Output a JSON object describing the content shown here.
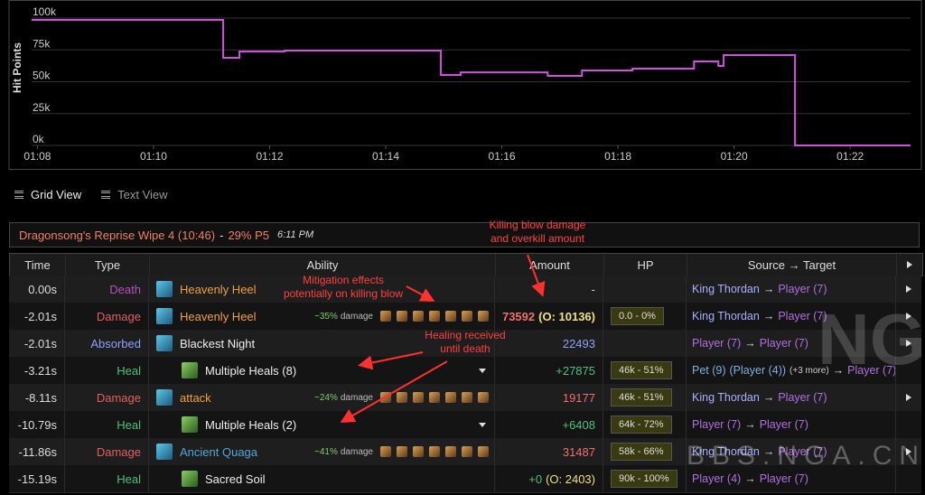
{
  "chart_data": {
    "type": "line",
    "ylabel": "Hit Points",
    "x": [
      67.9,
      71.2,
      71.2,
      71.48,
      71.48,
      72.26,
      72.26,
      74.95,
      74.95,
      75.29,
      75.29,
      76.79,
      76.79,
      77.38,
      77.38,
      78.25,
      78.25,
      79.31,
      79.31,
      79.73,
      79.73,
      79.82,
      79.82,
      81.05,
      81.05,
      83.04
    ],
    "series": [
      {
        "name": "Hit Points",
        "color": "#d050e0",
        "values": [
          98600,
          98600,
          68800,
          68800,
          73800,
          73800,
          74500,
          74500,
          55300,
          55300,
          57400,
          57400,
          54600,
          54600,
          58900,
          58900,
          60300,
          60300,
          66000,
          66000,
          62400,
          62400,
          70900,
          70900,
          0,
          0
        ]
      }
    ],
    "xlim": [
      67.9,
      83.04
    ],
    "ylim": [
      0,
      100000
    ],
    "xticks": [
      {
        "value": 68,
        "label": "01:08"
      },
      {
        "value": 70,
        "label": "01:10"
      },
      {
        "value": 72,
        "label": "01:12"
      },
      {
        "value": 74,
        "label": "01:14"
      },
      {
        "value": 76,
        "label": "01:16"
      },
      {
        "value": 78,
        "label": "01:18"
      },
      {
        "value": 80,
        "label": "01:20"
      },
      {
        "value": 82,
        "label": "01:22"
      }
    ],
    "yticks": [
      {
        "value": 0,
        "label": "0k"
      },
      {
        "value": 25000,
        "label": "25k"
      },
      {
        "value": 50000,
        "label": "50k"
      },
      {
        "value": 75000,
        "label": "75k"
      },
      {
        "value": 100000,
        "label": "100k"
      }
    ],
    "grid": true
  },
  "tabs": [
    "Grid View",
    "Text View"
  ],
  "header": {
    "title": "Dragonsong's Reprise Wipe 4 (10:46)",
    "sep": "-",
    "phase": "29% P5",
    "time": "6:11 PM"
  },
  "annotations": [
    "Killing blow damage\nand overkill amount",
    "Mitigation effects\npotentially on killing blow",
    "Healing received\nuntil death"
  ],
  "watermark": [
    "NGA",
    "BBS.NGA.CN"
  ],
  "arrow": "→",
  "mitigation_suffix": "damage",
  "table": {
    "columns": [
      "Time",
      "Type",
      "Ability",
      "Amount",
      "HP",
      "Source → Target"
    ],
    "rows": [
      {
        "time": "0.00s",
        "type": "Death",
        "type_color": "#b84fc0",
        "ability": "Heavenly Heel",
        "ability_color": "#f0a040",
        "amount": "-",
        "amount_color": "#ccc",
        "source": "King Thordan",
        "source_color": "#aab0ff",
        "target": "Player (7)",
        "target_color": "#b070e0"
      },
      {
        "time": "-2.01s",
        "type": "Damage",
        "type_color": "#e06060",
        "ability": "Heavenly Heel",
        "ability_color": "#f0a040",
        "mitigation": "−35%",
        "amount": "73592",
        "overkill": "(O: 10136)",
        "amount_color": "#f07070",
        "hp": "0.0 - 0%",
        "source": "King Thordan",
        "source_color": "#aab0ff",
        "target": "Player (7)",
        "target_color": "#b070e0"
      },
      {
        "time": "-2.01s",
        "type": "Absorbed",
        "type_color": "#8fa0ff",
        "ability": "Blackest Night",
        "ability_color": "#eeeeee",
        "amount": "22493",
        "amount_color": "#8fa0ff",
        "source": "Player (7)",
        "source_color": "#b070e0",
        "target": "Player (7)",
        "target_color": "#b070e0"
      },
      {
        "time": "-3.21s",
        "type": "Heal",
        "type_color": "#4ec07c",
        "ability": "Multiple Heals (8)",
        "ability_color": "#eeeeee",
        "amount": "+27875",
        "amount_color": "#4ec07c",
        "hp": "46k - 51%",
        "source": "Pet (9)",
        "source_owner": "(Player (4))",
        "source_more": "(+3 more)",
        "source_color": "#7fb0e0",
        "target": "Player (7)",
        "target_color": "#b070e0"
      },
      {
        "time": "-8.11s",
        "type": "Damage",
        "type_color": "#e06060",
        "ability": "attack",
        "ability_color": "#f0a040",
        "mitigation": "−24%",
        "amount": "19177",
        "amount_color": "#f07070",
        "hp": "46k - 51%",
        "source": "King Thordan",
        "source_color": "#aab0ff",
        "target": "Player (7)",
        "target_color": "#b070e0"
      },
      {
        "time": "-10.79s",
        "type": "Heal",
        "type_color": "#4ec07c",
        "ability": "Multiple Heals (2)",
        "ability_color": "#eeeeee",
        "amount": "+6408",
        "amount_color": "#4ec07c",
        "hp": "64k - 72%",
        "source": "Player (7)",
        "source_color": "#b070e0",
        "target": "Player (7)",
        "target_color": "#b070e0"
      },
      {
        "time": "-11.86s",
        "type": "Damage",
        "type_color": "#e06060",
        "ability": "Ancient Quaga",
        "ability_color": "#4fa8d8",
        "mitigation": "−41%",
        "amount": "31487",
        "amount_color": "#f07070",
        "hp": "58k - 66%",
        "source": "King Thordan",
        "source_color": "#aab0ff",
        "target": "Player (7)",
        "target_color": "#b070e0"
      },
      {
        "time": "-15.19s",
        "type": "Heal",
        "type_color": "#4ec07c",
        "ability": "Sacred Soil",
        "ability_color": "#eeeeee",
        "amount": "+0",
        "overkill": "(O: 2403)",
        "amount_color": "#4ec07c",
        "hp": "90k - 100%",
        "source": "Player (4)",
        "source_color": "#b070e0",
        "target": "Player (7)",
        "target_color": "#b070e0"
      }
    ]
  }
}
